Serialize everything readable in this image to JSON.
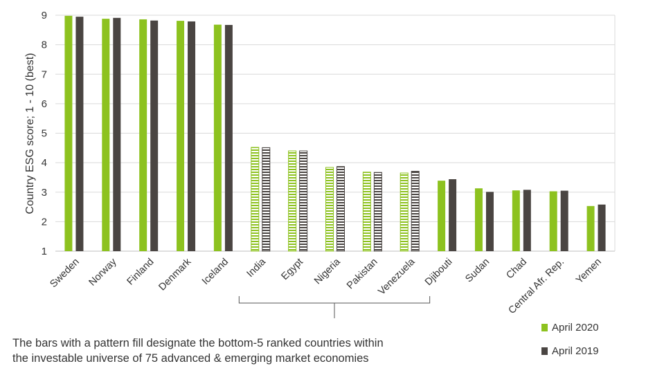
{
  "chart_data": {
    "type": "bar",
    "ylabel": "Country ESG score; 1 - 10 (best)",
    "xlabel": "",
    "ylim": [
      1,
      9
    ],
    "yticks": [
      "1",
      "2",
      "3",
      "4",
      "5",
      "6",
      "7",
      "8",
      "9"
    ],
    "grid": true,
    "legend_position": "bottom-right",
    "categories": [
      "Sweden",
      "Norway",
      "Finland",
      "Denmark",
      "Iceland",
      "India",
      "Egypt",
      "Nigeria",
      "Pakistan",
      "Venezuela",
      "Djibouti",
      "Sudan",
      "Chad",
      "Central Afr. Rep.",
      "Yemen"
    ],
    "patterned_categories": [
      "India",
      "Egypt",
      "Nigeria",
      "Pakistan",
      "Venezuela"
    ],
    "series": [
      {
        "name": "April 2020",
        "color": "#8dc21f",
        "values": [
          8.98,
          8.88,
          8.86,
          8.81,
          8.68,
          4.52,
          4.4,
          3.84,
          3.68,
          3.65,
          3.39,
          3.13,
          3.06,
          3.03,
          2.53
        ]
      },
      {
        "name": "April 2019",
        "color": "#4a4542",
        "values": [
          8.95,
          8.91,
          8.82,
          8.79,
          8.67,
          4.51,
          4.4,
          3.87,
          3.67,
          3.71,
          3.44,
          3.01,
          3.08,
          3.05,
          2.58
        ]
      }
    ],
    "annotation": {
      "line1": "The bars with a pattern fill designate the bottom-5 ranked countries within",
      "line2": "the investable universe of 75 advanced & emerging market economies"
    }
  }
}
